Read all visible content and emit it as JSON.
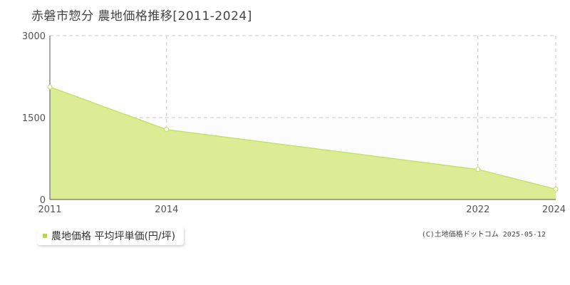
{
  "title": "赤磐市惣分 農地価格推移[2011-2024]",
  "legend": {
    "label": "農地価格 平均坪単価(円/坪)"
  },
  "copyright": "(C)土地価格ドットコム 2025-05-12",
  "colors": {
    "area_fill": "#dcec94",
    "line": "#c4e26a",
    "point_fill": "#ffffff",
    "grid": "#c8c8c8",
    "axis": "#555555",
    "plot_bg_upper": "#fcfcfc",
    "legend_swatch": "#b8da4a"
  },
  "chart_data": {
    "type": "area",
    "title": "赤磐市惣分 農地価格推移[2011-2024]",
    "xlabel": "",
    "ylabel": "",
    "x_ticks": [
      2011,
      2014,
      2022,
      2024
    ],
    "y_ticks": [
      0,
      1500,
      3000
    ],
    "xlim": [
      2011,
      2024
    ],
    "ylim": [
      0,
      3000
    ],
    "grid": true,
    "legend_position": "bottom-left",
    "series": [
      {
        "name": "農地価格 平均坪単価(円/坪)",
        "points": [
          {
            "x": 2011,
            "y": 2060
          },
          {
            "x": 2014,
            "y": 1280
          },
          {
            "x": 2022,
            "y": 550
          },
          {
            "x": 2024,
            "y": 190
          }
        ]
      }
    ]
  }
}
